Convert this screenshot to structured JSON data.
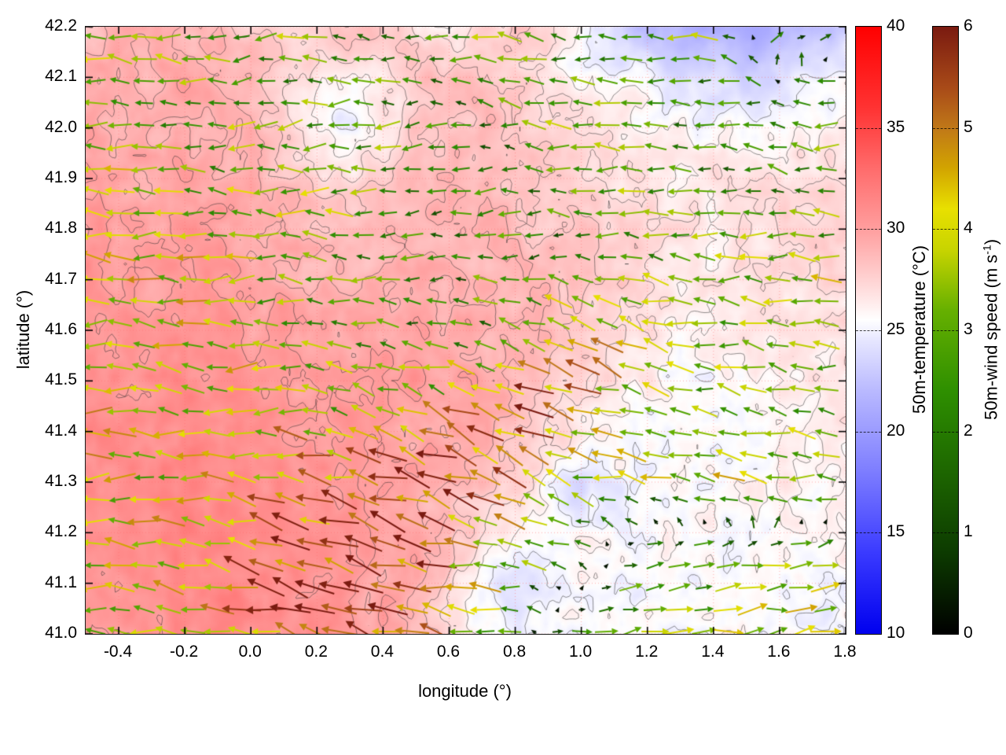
{
  "chart_data": {
    "type": "heatmap",
    "description": "Map of 50m temperature (shaded, with contour lines) overlaid with 50m wind vectors colored by wind speed",
    "x_axis": {
      "label": "longitude (°)",
      "min": -0.5,
      "max": 1.8,
      "ticks": [
        -0.4,
        -0.2,
        0.0,
        0.2,
        0.4,
        0.6,
        0.8,
        1.0,
        1.2,
        1.4,
        1.6,
        1.8
      ],
      "tick_labels": [
        "-0.4",
        "-0.2",
        "0.0",
        "0.2",
        "0.4",
        "0.6",
        "0.8",
        "1.0",
        "1.2",
        "1.4",
        "1.6",
        "1.8"
      ]
    },
    "y_axis": {
      "label": "latitude (°)",
      "min": 41.0,
      "max": 42.2,
      "ticks": [
        41.0,
        41.1,
        41.2,
        41.3,
        41.4,
        41.5,
        41.6,
        41.7,
        41.8,
        41.9,
        42.0,
        42.1,
        42.2
      ],
      "tick_labels": [
        "41.0",
        "41.1",
        "41.2",
        "41.3",
        "41.4",
        "41.5",
        "41.6",
        "41.7",
        "41.8",
        "41.9",
        "42.0",
        "42.1",
        "42.2"
      ]
    },
    "temperature_colorbar": {
      "label": "50m-temperature (°C)",
      "min": 10,
      "max": 40,
      "ticks": [
        10,
        15,
        20,
        25,
        30,
        35,
        40
      ],
      "tick_labels": [
        "10",
        "15",
        "20",
        "25",
        "30",
        "35",
        "40"
      ],
      "stops": [
        [
          10,
          "#0000ee"
        ],
        [
          14,
          "#3a3aff"
        ],
        [
          18,
          "#7d7dff"
        ],
        [
          22,
          "#b9b9ff"
        ],
        [
          24.5,
          "#e6e6ff"
        ],
        [
          25.5,
          "#ffffff"
        ],
        [
          26.5,
          "#ffe8e8"
        ],
        [
          28,
          "#ffc8c8"
        ],
        [
          30,
          "#ff9e9e"
        ],
        [
          33,
          "#ff6b6b"
        ],
        [
          36,
          "#ff3232"
        ],
        [
          40,
          "#ff0000"
        ]
      ]
    },
    "wind_colorbar": {
      "label_prefix": "50m-wind speed (m s",
      "label_sup": "-1",
      "label_suffix": ")",
      "min": 0,
      "max": 6,
      "ticks": [
        0,
        1,
        2,
        3,
        4,
        5,
        6
      ],
      "tick_labels": [
        "0",
        "1",
        "2",
        "3",
        "4",
        "5",
        "6"
      ],
      "stops": [
        [
          0,
          "#000000"
        ],
        [
          0.8,
          "#0c3a00"
        ],
        [
          1.6,
          "#1d6600"
        ],
        [
          2.4,
          "#2e8f00"
        ],
        [
          3.2,
          "#66b000"
        ],
        [
          3.8,
          "#c8d400"
        ],
        [
          4.2,
          "#e8e000"
        ],
        [
          4.6,
          "#d2a400"
        ],
        [
          5.0,
          "#c07818"
        ],
        [
          5.4,
          "#a84a18"
        ],
        [
          6,
          "#7a1a10"
        ]
      ]
    },
    "temperature_grid": {
      "lon_min": -0.5,
      "lon_max": 1.8,
      "lat_min": 41.0,
      "lat_max": 42.2,
      "values_north_to_south": [
        [
          29,
          29,
          29.5,
          29,
          28.5,
          28,
          27.5,
          28,
          28.5,
          28,
          27,
          26.5,
          27.5,
          28,
          27,
          25,
          23.5,
          22.5,
          22,
          21.5,
          21,
          21.5,
          22,
          23
        ],
        [
          29.5,
          29,
          29,
          29.5,
          29,
          28.5,
          27,
          26,
          25.5,
          26.5,
          28,
          28.5,
          28,
          27.5,
          26.5,
          26,
          25.5,
          25,
          24.5,
          24,
          23.5,
          24,
          24.5,
          25
        ],
        [
          29.5,
          29.5,
          29,
          29,
          29.5,
          29,
          27.5,
          25.5,
          25,
          26,
          28,
          28.5,
          28.5,
          28,
          27.5,
          27,
          26.5,
          26,
          26,
          25.5,
          25,
          25.5,
          26,
          26.5
        ],
        [
          30,
          29.5,
          29.5,
          30,
          29.5,
          29,
          28.5,
          27.5,
          27,
          27.5,
          28.5,
          29,
          28.5,
          28,
          28,
          27.5,
          27,
          27,
          26.5,
          26.5,
          26.5,
          27,
          27,
          27
        ],
        [
          30,
          30,
          29.5,
          30,
          30,
          29.5,
          29,
          28.5,
          28.5,
          28.5,
          29,
          29,
          29,
          28.5,
          28,
          28,
          27.5,
          27,
          27,
          26.5,
          27,
          27,
          27.5,
          27.5
        ],
        [
          30.5,
          30,
          30,
          30.5,
          30,
          30,
          29.5,
          29,
          29,
          29,
          29.5,
          29,
          29,
          28.5,
          28.5,
          28,
          27.5,
          27,
          26.5,
          26.5,
          26.5,
          27,
          27,
          27
        ],
        [
          30.5,
          30.5,
          30,
          30.5,
          30.5,
          30,
          30,
          29.5,
          29.5,
          29.5,
          29.5,
          29.5,
          29,
          29,
          28.5,
          28,
          27,
          26.5,
          26,
          26,
          26,
          26.5,
          26.5,
          27
        ],
        [
          31,
          30.5,
          30.5,
          31,
          30.5,
          30.5,
          30,
          30,
          30,
          30,
          30,
          29.5,
          29.5,
          29,
          28,
          27,
          26.5,
          26,
          25.5,
          25.5,
          26,
          26,
          26.5,
          26.5
        ],
        [
          31,
          31,
          30.5,
          31,
          31,
          30.5,
          30.5,
          30,
          30.5,
          30,
          30,
          29.5,
          29,
          28.5,
          27.5,
          26.5,
          26,
          25.5,
          25.5,
          25.5,
          25.5,
          26,
          26,
          26.5
        ],
        [
          31,
          31,
          31,
          31,
          31,
          31,
          30.5,
          30.5,
          30.5,
          30,
          29.5,
          29,
          28.5,
          27.5,
          25.5,
          23.5,
          25,
          25.5,
          25.5,
          25.5,
          26,
          26,
          26,
          26
        ],
        [
          30.5,
          31,
          31,
          31.5,
          31,
          31,
          31,
          30.5,
          30.5,
          30,
          29.5,
          28.5,
          27,
          26,
          25.5,
          25.5,
          25.5,
          25.5,
          25.5,
          25.5,
          25.5,
          25.5,
          26,
          26
        ],
        [
          30.5,
          30.5,
          31,
          31,
          31.5,
          31,
          31,
          30.5,
          30,
          29.5,
          29,
          27.5,
          25,
          24.5,
          25,
          25.5,
          25.5,
          25.5,
          25.5,
          25.5,
          25.5,
          25.5,
          25.5,
          25.5
        ],
        [
          30,
          30.5,
          30.5,
          31,
          31,
          31,
          30.5,
          30.5,
          30,
          29.5,
          28.5,
          27,
          25.5,
          25,
          25.5,
          25.5,
          25.5,
          25.5,
          25.5,
          25.5,
          25.5,
          25.5,
          25.5,
          25.5
        ]
      ]
    },
    "wind_grid": {
      "u": [
        [
          -3,
          -3,
          -2.5,
          -3,
          -2,
          -2.5,
          -3,
          -2,
          -2.5,
          -3,
          2,
          2.5
        ],
        [
          -3.5,
          -3,
          -3,
          -2.5,
          -3,
          -2,
          -2.5,
          -3,
          -2.5,
          -2,
          -2.5,
          -3
        ],
        [
          -4,
          -3.5,
          -3,
          -3.5,
          -3,
          -2.5,
          -2,
          -2.5,
          -3,
          -2.5,
          -2,
          -2.5
        ],
        [
          -4,
          -4,
          -3.5,
          -3,
          -2.5,
          -2,
          -2.5,
          -2,
          -2.5,
          -3,
          -3.5,
          -3
        ],
        [
          -4,
          -3.5,
          -4,
          -3,
          -2.5,
          -2,
          -2.5,
          -4.5,
          -3.5,
          -3,
          -3.5,
          -4
        ],
        [
          -4,
          -4,
          -3.5,
          -4,
          -3,
          -3.5,
          -5,
          -4.5,
          -3.5,
          -3,
          -3.5,
          -3
        ],
        [
          -4,
          -3.5,
          -4,
          -4.5,
          -5,
          -5.5,
          -4.5,
          -3,
          -3.5,
          -4,
          -3.5,
          -3.5
        ],
        [
          -3.5,
          -4,
          -4.5,
          -5.5,
          -5.5,
          -5,
          -3.5,
          -2,
          2.5,
          3,
          3.5,
          3.5
        ],
        [
          -3.5,
          -3.5,
          -4,
          -5.5,
          -5.5,
          -5,
          -3,
          2.5,
          3,
          3.5,
          3.5,
          3.5
        ]
      ],
      "v": [
        [
          0.5,
          0,
          -0.5,
          0,
          0.5,
          0,
          0.5,
          0.5,
          0,
          0.5,
          1,
          0.5
        ],
        [
          0,
          0.5,
          0,
          -0.5,
          0,
          0,
          0.5,
          0,
          0.5,
          0,
          0.5,
          0
        ],
        [
          0,
          0,
          0.5,
          0,
          0,
          -0.5,
          0,
          0.5,
          0,
          0,
          0.5,
          0
        ],
        [
          0.5,
          0,
          0,
          0.5,
          0,
          0,
          -0.5,
          0,
          0.5,
          0,
          0,
          0.5
        ],
        [
          0,
          0.5,
          0,
          0,
          0.5,
          0,
          1,
          2,
          1,
          0.5,
          0.5,
          0
        ],
        [
          0,
          0.5,
          0,
          0,
          1,
          1.5,
          2.5,
          2,
          1,
          0.5,
          1,
          0.5
        ],
        [
          0,
          0,
          0.5,
          1,
          1.5,
          2,
          2,
          1,
          0.5,
          1,
          0.5,
          0
        ],
        [
          0,
          0.5,
          1,
          1.5,
          1.5,
          1,
          0.5,
          0.5,
          0.5,
          0.5,
          0.5,
          0.5
        ],
        [
          0,
          0.5,
          1,
          1.5,
          1.5,
          1,
          0.5,
          0.5,
          0.5,
          0.5,
          0.5,
          0.5
        ]
      ]
    },
    "contour_levels": [
      25,
      26,
      27,
      28,
      29,
      30
    ],
    "noise_seed": 7,
    "noise_amplitude": 0.8
  }
}
